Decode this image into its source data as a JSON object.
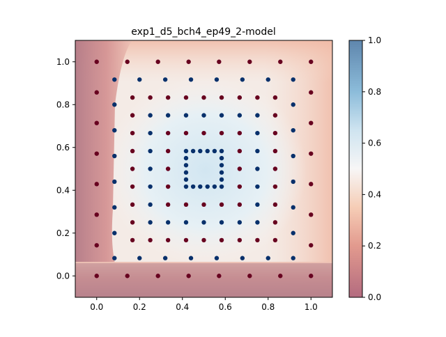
{
  "chart_data": {
    "type": "scatter",
    "title": "exp1_d5_bch4_ep49_2-model",
    "xlabel": "",
    "ylabel": "",
    "xlim": [
      -0.1,
      1.1
    ],
    "ylim": [
      -0.1,
      1.1
    ],
    "xticks": [
      "0.0",
      "0.2",
      "0.4",
      "0.6",
      "0.8",
      "1.0"
    ],
    "yticks": [
      "0.0",
      "0.2",
      "0.4",
      "0.6",
      "0.8",
      "1.0"
    ],
    "colorbar": {
      "range": [
        0.0,
        1.0
      ],
      "ticks": [
        "0.0",
        "0.2",
        "0.4",
        "0.6",
        "0.8",
        "1.0"
      ],
      "colormap": "RdBu",
      "alpha": 0.5
    },
    "background": "heatmap of predicted value (RdBu, semi-transparent); low near x<0.08 and y<0.06 and outer edges, ~0.5-0.6 inside",
    "class_colors": {
      "1": "#08306b",
      "0": "#67001f"
    },
    "series": [
      {
        "class": 0,
        "color": "#67001f",
        "points": [
          [
            0.0,
            0.0
          ],
          [
            0.143,
            0.0
          ],
          [
            0.286,
            0.0
          ],
          [
            0.429,
            0.0
          ],
          [
            0.571,
            0.0
          ],
          [
            0.714,
            0.0
          ],
          [
            0.857,
            0.0
          ],
          [
            1.0,
            0.0
          ],
          [
            0.0,
            1.0
          ],
          [
            0.143,
            1.0
          ],
          [
            0.286,
            1.0
          ],
          [
            0.429,
            1.0
          ],
          [
            0.571,
            1.0
          ],
          [
            0.714,
            1.0
          ],
          [
            0.857,
            1.0
          ],
          [
            1.0,
            1.0
          ],
          [
            0.0,
            0.143
          ],
          [
            0.0,
            0.286
          ],
          [
            0.0,
            0.429
          ],
          [
            0.0,
            0.571
          ],
          [
            0.0,
            0.714
          ],
          [
            0.0,
            0.857
          ],
          [
            1.0,
            0.143
          ],
          [
            1.0,
            0.286
          ],
          [
            1.0,
            0.429
          ],
          [
            1.0,
            0.571
          ],
          [
            1.0,
            0.714
          ],
          [
            1.0,
            0.857
          ],
          [
            0.167,
            0.167
          ],
          [
            0.25,
            0.167
          ],
          [
            0.333,
            0.167
          ],
          [
            0.417,
            0.167
          ],
          [
            0.5,
            0.167
          ],
          [
            0.583,
            0.167
          ],
          [
            0.667,
            0.167
          ],
          [
            0.75,
            0.167
          ],
          [
            0.833,
            0.167
          ],
          [
            0.167,
            0.833
          ],
          [
            0.25,
            0.833
          ],
          [
            0.333,
            0.833
          ],
          [
            0.417,
            0.833
          ],
          [
            0.5,
            0.833
          ],
          [
            0.583,
            0.833
          ],
          [
            0.667,
            0.833
          ],
          [
            0.75,
            0.833
          ],
          [
            0.833,
            0.833
          ],
          [
            0.167,
            0.25
          ],
          [
            0.167,
            0.333
          ],
          [
            0.167,
            0.417
          ],
          [
            0.167,
            0.5
          ],
          [
            0.167,
            0.583
          ],
          [
            0.167,
            0.667
          ],
          [
            0.167,
            0.75
          ],
          [
            0.833,
            0.25
          ],
          [
            0.833,
            0.333
          ],
          [
            0.833,
            0.417
          ],
          [
            0.833,
            0.5
          ],
          [
            0.833,
            0.583
          ],
          [
            0.833,
            0.667
          ],
          [
            0.833,
            0.75
          ],
          [
            0.333,
            0.333
          ],
          [
            0.417,
            0.333
          ],
          [
            0.5,
            0.333
          ],
          [
            0.583,
            0.333
          ],
          [
            0.667,
            0.333
          ],
          [
            0.333,
            0.667
          ],
          [
            0.417,
            0.667
          ],
          [
            0.5,
            0.667
          ],
          [
            0.583,
            0.667
          ],
          [
            0.667,
            0.667
          ],
          [
            0.333,
            0.417
          ],
          [
            0.333,
            0.5
          ],
          [
            0.333,
            0.583
          ],
          [
            0.667,
            0.417
          ],
          [
            0.667,
            0.5
          ],
          [
            0.667,
            0.583
          ]
        ]
      },
      {
        "class": 1,
        "color": "#08306b",
        "points": [
          [
            0.083,
            0.083
          ],
          [
            0.2,
            0.083
          ],
          [
            0.32,
            0.083
          ],
          [
            0.44,
            0.083
          ],
          [
            0.56,
            0.083
          ],
          [
            0.68,
            0.083
          ],
          [
            0.8,
            0.083
          ],
          [
            0.917,
            0.083
          ],
          [
            0.083,
            0.917
          ],
          [
            0.2,
            0.917
          ],
          [
            0.32,
            0.917
          ],
          [
            0.44,
            0.917
          ],
          [
            0.56,
            0.917
          ],
          [
            0.68,
            0.917
          ],
          [
            0.8,
            0.917
          ],
          [
            0.917,
            0.917
          ],
          [
            0.083,
            0.2
          ],
          [
            0.083,
            0.32
          ],
          [
            0.083,
            0.44
          ],
          [
            0.083,
            0.56
          ],
          [
            0.083,
            0.68
          ],
          [
            0.083,
            0.8
          ],
          [
            0.917,
            0.2
          ],
          [
            0.917,
            0.32
          ],
          [
            0.917,
            0.44
          ],
          [
            0.917,
            0.56
          ],
          [
            0.917,
            0.68
          ],
          [
            0.917,
            0.8
          ],
          [
            0.25,
            0.25
          ],
          [
            0.333,
            0.25
          ],
          [
            0.417,
            0.25
          ],
          [
            0.5,
            0.25
          ],
          [
            0.583,
            0.25
          ],
          [
            0.667,
            0.25
          ],
          [
            0.75,
            0.25
          ],
          [
            0.25,
            0.75
          ],
          [
            0.333,
            0.75
          ],
          [
            0.417,
            0.75
          ],
          [
            0.5,
            0.75
          ],
          [
            0.583,
            0.75
          ],
          [
            0.667,
            0.75
          ],
          [
            0.75,
            0.75
          ],
          [
            0.25,
            0.333
          ],
          [
            0.25,
            0.417
          ],
          [
            0.25,
            0.5
          ],
          [
            0.25,
            0.583
          ],
          [
            0.25,
            0.667
          ],
          [
            0.75,
            0.333
          ],
          [
            0.75,
            0.417
          ],
          [
            0.75,
            0.5
          ],
          [
            0.75,
            0.583
          ],
          [
            0.75,
            0.667
          ],
          [
            0.417,
            0.417
          ],
          [
            0.45,
            0.417
          ],
          [
            0.483,
            0.417
          ],
          [
            0.517,
            0.417
          ],
          [
            0.55,
            0.417
          ],
          [
            0.583,
            0.417
          ],
          [
            0.417,
            0.583
          ],
          [
            0.45,
            0.583
          ],
          [
            0.483,
            0.583
          ],
          [
            0.517,
            0.583
          ],
          [
            0.55,
            0.583
          ],
          [
            0.583,
            0.583
          ],
          [
            0.417,
            0.45
          ],
          [
            0.417,
            0.483
          ],
          [
            0.417,
            0.517
          ],
          [
            0.417,
            0.55
          ],
          [
            0.583,
            0.45
          ],
          [
            0.583,
            0.483
          ],
          [
            0.583,
            0.517
          ],
          [
            0.583,
            0.55
          ]
        ]
      }
    ]
  }
}
